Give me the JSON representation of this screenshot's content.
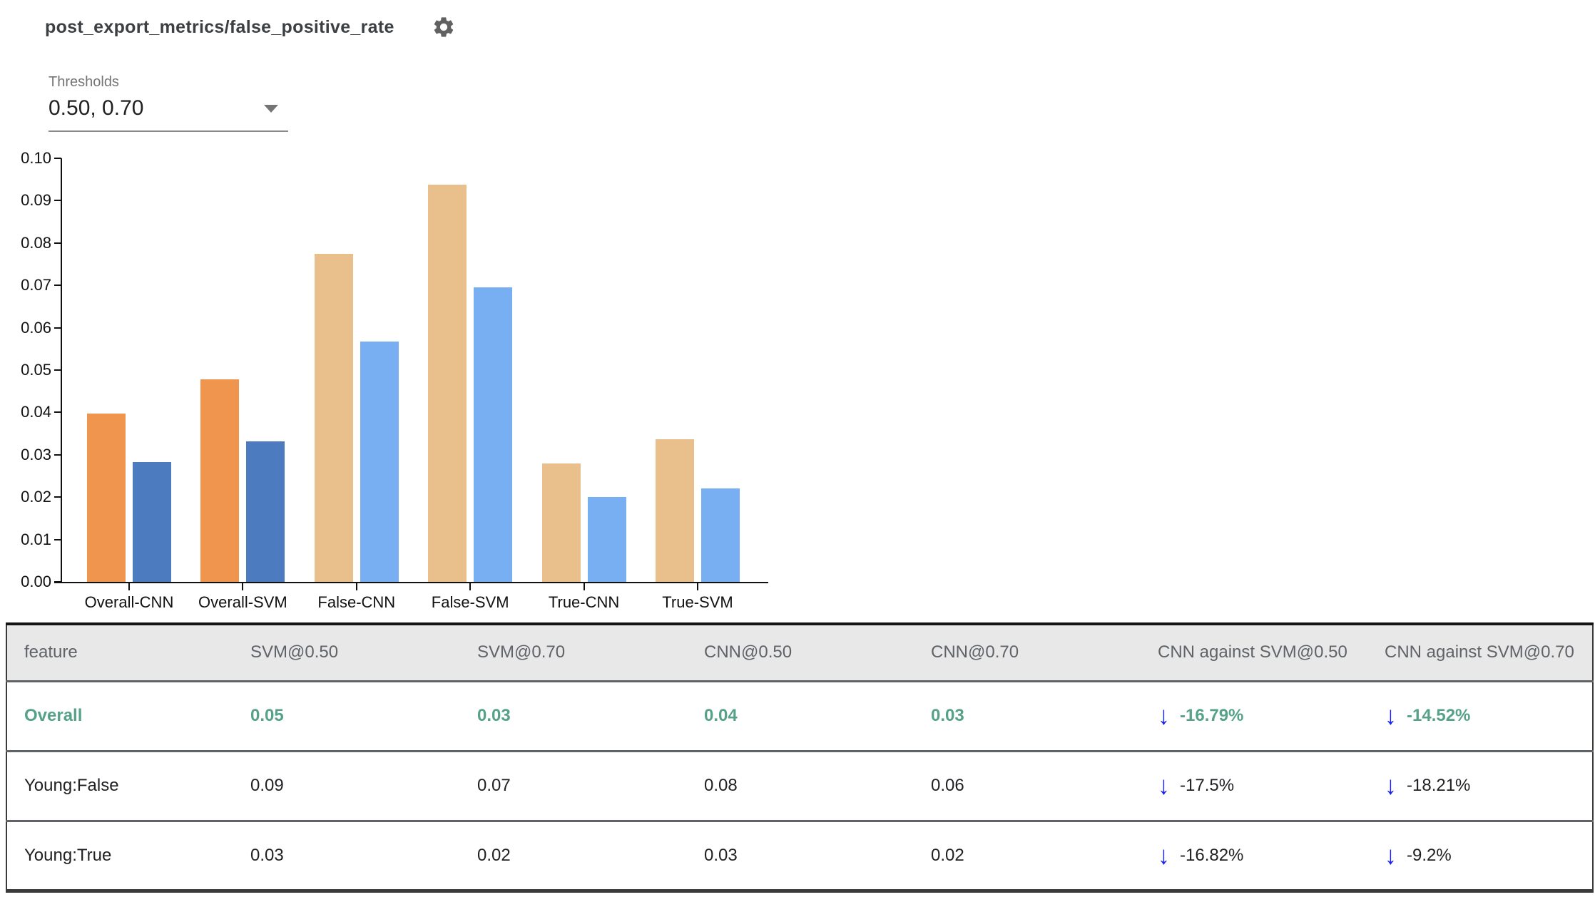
{
  "header": {
    "title": "post_export_metrics/false_positive_rate",
    "settings_icon": "gear-icon"
  },
  "thresholds": {
    "label": "Thresholds",
    "value": "0.50, 0.70"
  },
  "icons": {
    "arrow_down": "↓"
  },
  "colors": {
    "highlight_text": "#55a287",
    "arrow_blue": "#1822ee",
    "header_bg": "#e8e8e8",
    "bar_orange": "#f0954d",
    "bar_dark_blue": "#4c7cbf",
    "bar_tan": "#e9c08c",
    "bar_light_blue": "#77aff2"
  },
  "chart_data": {
    "type": "bar",
    "title": "post_export_metrics/false_positive_rate",
    "xlabel": "",
    "ylabel": "",
    "ylim": [
      0,
      0.1
    ],
    "ytick_step": 0.01,
    "grid": false,
    "legend": "none",
    "categories": [
      "Overall-CNN",
      "Overall-SVM",
      "False-CNN",
      "False-SVM",
      "True-CNN",
      "True-SVM"
    ],
    "series": [
      {
        "name": "threshold 0.50",
        "values": [
          0.0398,
          0.0478,
          0.0774,
          0.0937,
          0.0279,
          0.0337
        ]
      },
      {
        "name": "threshold 0.70",
        "values": [
          0.0283,
          0.0332,
          0.0568,
          0.0695,
          0.0201,
          0.0221
        ]
      }
    ],
    "bar_colors": {
      "highlight": [
        "#f0954d",
        "#4c7cbf"
      ],
      "normal": [
        "#e9c08c",
        "#77aff2"
      ]
    },
    "highlighted_categories": [
      "Overall-CNN",
      "Overall-SVM"
    ]
  },
  "table": {
    "columns": [
      "feature",
      "SVM@0.50",
      "SVM@0.70",
      "CNN@0.50",
      "CNN@0.70",
      "CNN against SVM@0.50",
      "CNN against SVM@0.70"
    ],
    "rows": [
      {
        "feature": "Overall",
        "svm_050": "0.05",
        "svm_070": "0.03",
        "cnn_050": "0.04",
        "cnn_070": "0.03",
        "diff_050": "-16.79%",
        "diff_070": "-14.52%",
        "diff_050_direction": "down",
        "diff_070_direction": "down",
        "highlighted": true
      },
      {
        "feature": "Young:False",
        "svm_050": "0.09",
        "svm_070": "0.07",
        "cnn_050": "0.08",
        "cnn_070": "0.06",
        "diff_050": "-17.5%",
        "diff_070": "-18.21%",
        "diff_050_direction": "down",
        "diff_070_direction": "down",
        "highlighted": false
      },
      {
        "feature": "Young:True",
        "svm_050": "0.03",
        "svm_070": "0.02",
        "cnn_050": "0.03",
        "cnn_070": "0.02",
        "diff_050": "-16.82%",
        "diff_070": "-9.2%",
        "diff_050_direction": "down",
        "diff_070_direction": "down",
        "highlighted": false
      }
    ]
  }
}
